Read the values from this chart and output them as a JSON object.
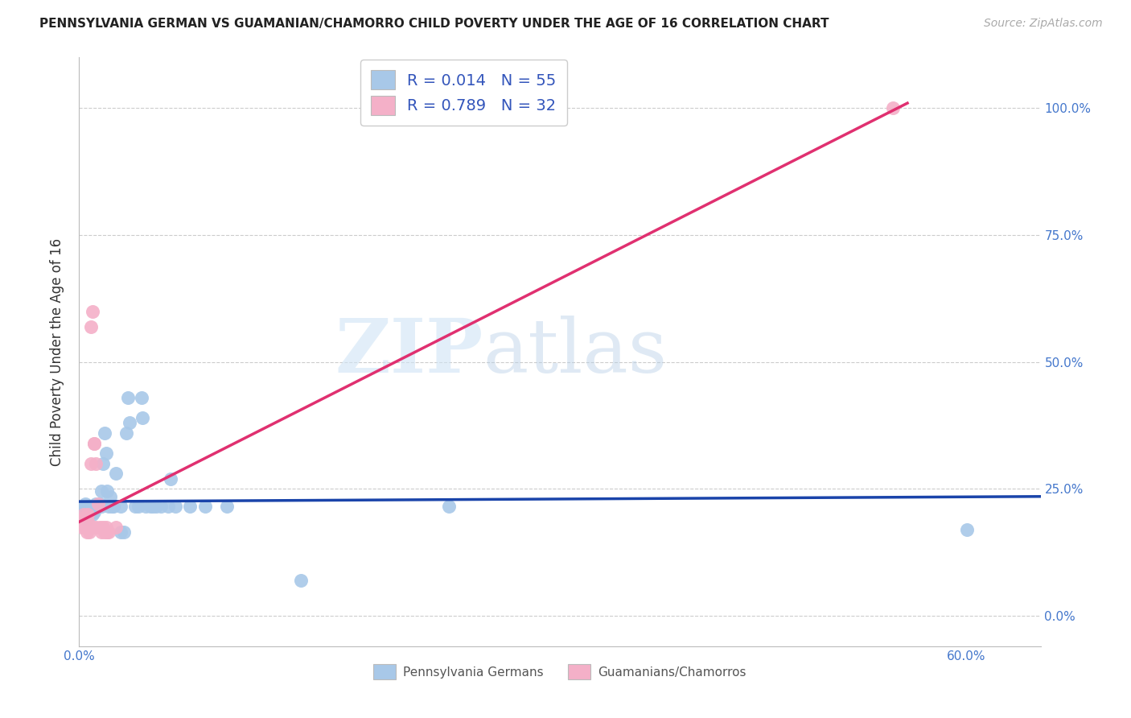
{
  "title": "PENNSYLVANIA GERMAN VS GUAMANIAN/CHAMORRO CHILD POVERTY UNDER THE AGE OF 16 CORRELATION CHART",
  "source": "Source: ZipAtlas.com",
  "ylabel": "Child Poverty Under the Age of 16",
  "xlim": [
    0.0,
    0.65
  ],
  "ylim": [
    -0.06,
    1.1
  ],
  "blue_R": "0.014",
  "blue_N": "55",
  "pink_R": "0.789",
  "pink_N": "32",
  "legend_label_blue": "Pennsylvania Germans",
  "legend_label_pink": "Guamanians/Chamorros",
  "watermark_zip": "ZIP",
  "watermark_atlas": "atlas",
  "blue_color": "#a8c8e8",
  "pink_color": "#f4b0c8",
  "blue_line_color": "#1a44aa",
  "pink_line_color": "#e03070",
  "grid_color": "#cccccc",
  "blue_scatter": [
    [
      0.002,
      0.215
    ],
    [
      0.003,
      0.21
    ],
    [
      0.003,
      0.2
    ],
    [
      0.004,
      0.22
    ],
    [
      0.004,
      0.2
    ],
    [
      0.005,
      0.215
    ],
    [
      0.005,
      0.19
    ],
    [
      0.006,
      0.21
    ],
    [
      0.006,
      0.2
    ],
    [
      0.007,
      0.215
    ],
    [
      0.007,
      0.21
    ],
    [
      0.008,
      0.215
    ],
    [
      0.009,
      0.2
    ],
    [
      0.01,
      0.215
    ],
    [
      0.01,
      0.205
    ],
    [
      0.011,
      0.22
    ],
    [
      0.011,
      0.215
    ],
    [
      0.012,
      0.215
    ],
    [
      0.013,
      0.215
    ],
    [
      0.014,
      0.22
    ],
    [
      0.015,
      0.245
    ],
    [
      0.015,
      0.215
    ],
    [
      0.016,
      0.3
    ],
    [
      0.017,
      0.36
    ],
    [
      0.018,
      0.32
    ],
    [
      0.019,
      0.245
    ],
    [
      0.02,
      0.215
    ],
    [
      0.021,
      0.235
    ],
    [
      0.022,
      0.215
    ],
    [
      0.023,
      0.215
    ],
    [
      0.025,
      0.28
    ],
    [
      0.028,
      0.215
    ],
    [
      0.028,
      0.165
    ],
    [
      0.03,
      0.165
    ],
    [
      0.032,
      0.36
    ],
    [
      0.033,
      0.43
    ],
    [
      0.034,
      0.38
    ],
    [
      0.038,
      0.215
    ],
    [
      0.04,
      0.215
    ],
    [
      0.042,
      0.43
    ],
    [
      0.043,
      0.39
    ],
    [
      0.045,
      0.215
    ],
    [
      0.048,
      0.215
    ],
    [
      0.05,
      0.215
    ],
    [
      0.052,
      0.215
    ],
    [
      0.055,
      0.215
    ],
    [
      0.06,
      0.215
    ],
    [
      0.062,
      0.27
    ],
    [
      0.065,
      0.215
    ],
    [
      0.075,
      0.215
    ],
    [
      0.085,
      0.215
    ],
    [
      0.1,
      0.215
    ],
    [
      0.15,
      0.07
    ],
    [
      0.25,
      0.215
    ],
    [
      0.6,
      0.17
    ]
  ],
  "pink_scatter": [
    [
      0.002,
      0.19
    ],
    [
      0.002,
      0.175
    ],
    [
      0.003,
      0.2
    ],
    [
      0.003,
      0.185
    ],
    [
      0.004,
      0.195
    ],
    [
      0.004,
      0.175
    ],
    [
      0.005,
      0.195
    ],
    [
      0.005,
      0.175
    ],
    [
      0.005,
      0.165
    ],
    [
      0.006,
      0.2
    ],
    [
      0.006,
      0.185
    ],
    [
      0.006,
      0.175
    ],
    [
      0.007,
      0.175
    ],
    [
      0.007,
      0.165
    ],
    [
      0.008,
      0.57
    ],
    [
      0.008,
      0.3
    ],
    [
      0.009,
      0.6
    ],
    [
      0.009,
      0.175
    ],
    [
      0.01,
      0.34
    ],
    [
      0.01,
      0.34
    ],
    [
      0.011,
      0.3
    ],
    [
      0.011,
      0.175
    ],
    [
      0.013,
      0.22
    ],
    [
      0.014,
      0.175
    ],
    [
      0.015,
      0.165
    ],
    [
      0.016,
      0.175
    ],
    [
      0.017,
      0.165
    ],
    [
      0.018,
      0.175
    ],
    [
      0.019,
      0.165
    ],
    [
      0.02,
      0.165
    ],
    [
      0.025,
      0.175
    ],
    [
      0.55,
      1.0
    ]
  ],
  "blue_line_x": [
    0.0,
    0.65
  ],
  "blue_line_y": [
    0.225,
    0.235
  ],
  "pink_line_x": [
    0.0,
    0.56
  ],
  "pink_line_y": [
    0.185,
    1.01
  ],
  "xtick_positions": [
    0.0,
    0.6
  ],
  "xtick_labels": [
    "0.0%",
    "60.0%"
  ],
  "ytick_positions": [
    0.0,
    0.25,
    0.5,
    0.75,
    1.0
  ],
  "ytick_labels": [
    "0.0%",
    "25.0%",
    "50.0%",
    "75.0%",
    "100.0%"
  ],
  "title_fontsize": 11,
  "source_fontsize": 10,
  "tick_fontsize": 11,
  "legend_fontsize": 14,
  "ylabel_fontsize": 12
}
